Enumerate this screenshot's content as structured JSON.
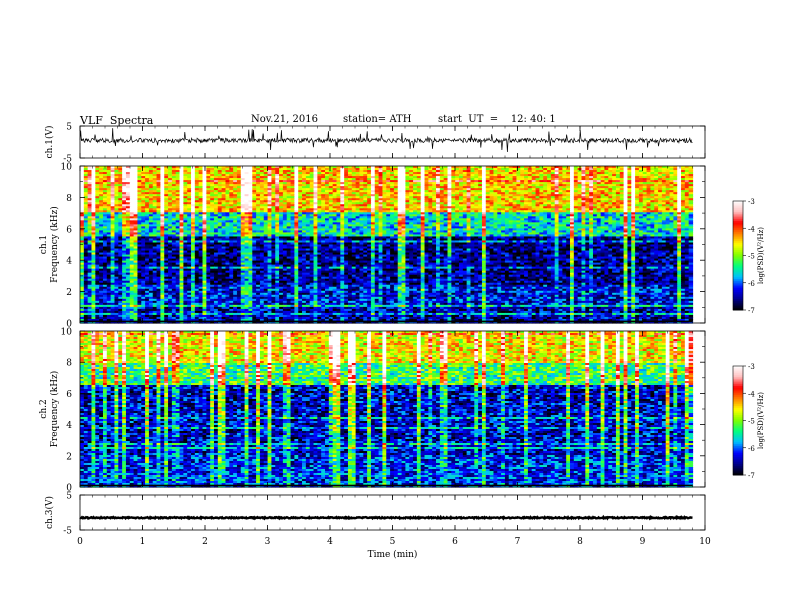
{
  "header": {
    "title": "VLF  Spectra",
    "date": "Nov.21, 2016",
    "station": "station= ATH",
    "start_ut": "start  UT  =    12: 40: 1"
  },
  "chart_data": [
    {
      "type": "line",
      "panel": "ch1-waveform",
      "ylabel": "ch.1(V)",
      "ylim": [
        -5,
        5
      ],
      "yticks": [
        "5",
        "-5"
      ],
      "x_range_min": [
        0,
        9.8
      ],
      "baseline_v": 0.5,
      "series": [
        {
          "values": "quasi-stationary noise trace near 0.5 V with impulsive spikes up to ~3 V"
        }
      ]
    },
    {
      "type": "heatmap",
      "panel": "ch1-spectrogram",
      "ylabel": "ch.1\nFrequency  (kHz)",
      "ylim": [
        0,
        10
      ],
      "yticks": [
        "0",
        "2",
        "4",
        "6",
        "8",
        "10"
      ],
      "x_range_min": [
        0,
        9.8
      ],
      "colorbar": {
        "label": "log(PSD)(V²/Hz)",
        "range": [
          -7,
          -3
        ],
        "ticks": [
          "-3",
          "-4",
          "-5",
          "-6",
          "-7"
        ]
      },
      "description_levels": {
        "below_1kHz": -6.5,
        "1_to_2.4kHz": -6.3,
        "2.4_to_5.5kHz": -6.6,
        "5.5_to_7kHz": -5.6,
        "7_to_10kHz": -4.5
      }
    },
    {
      "type": "heatmap",
      "panel": "ch2-spectrogram",
      "ylabel": "ch.2\nFrequency  (kHz)",
      "ylim": [
        0,
        10
      ],
      "yticks": [
        "0",
        "2",
        "4",
        "6",
        "8",
        "10"
      ],
      "x_range_min": [
        0,
        9.8
      ],
      "colorbar": {
        "label": "log(PSD)(V²/Hz)",
        "range": [
          -7,
          -3
        ],
        "ticks": [
          "-3",
          "-4",
          "-5",
          "-6",
          "-7"
        ]
      },
      "description_levels": {
        "below_2kHz": -6.2,
        "2_to_6.5kHz": -6.4,
        "6.5_to_8kHz": -5.3,
        "8_to_10kHz": -4.6
      }
    },
    {
      "type": "line",
      "panel": "ch3-waveform",
      "ylabel": "ch.3(V)",
      "ylim": [
        -5,
        5
      ],
      "yticks": [
        "5",
        "-5"
      ],
      "x_range_min": [
        0,
        9.8
      ],
      "series": [
        {
          "values": "flat thick trace at about -1.5 V"
        }
      ],
      "baseline_v": -1.5,
      "xlabel": "Time  (min)",
      "xlim": [
        0,
        10
      ],
      "xticks": [
        "0",
        "1",
        "2",
        "3",
        "4",
        "5",
        "6",
        "7",
        "8",
        "9",
        "10"
      ]
    }
  ],
  "colors": {
    "axes": "#000000",
    "background": "#ffffff",
    "colormap": [
      "#000000",
      "#00008b",
      "#0000ff",
      "#00bfff",
      "#00ff7f",
      "#7fff00",
      "#ffff00",
      "#ff7f00",
      "#ff0000",
      "#ffc0c0",
      "#ffffff"
    ]
  }
}
